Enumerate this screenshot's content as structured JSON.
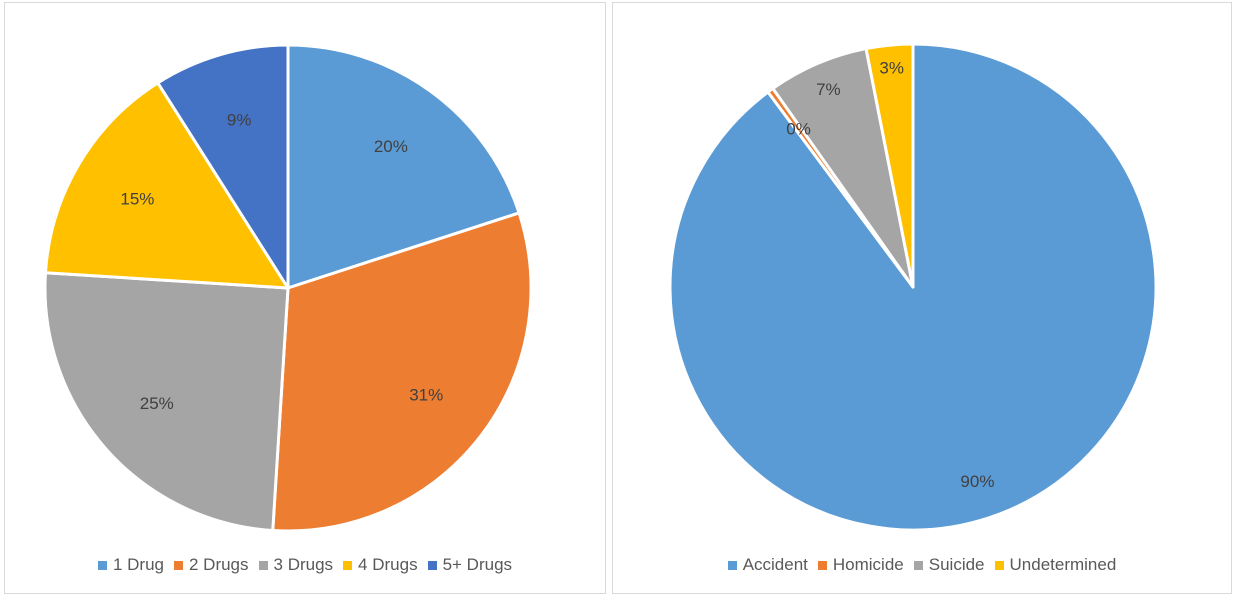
{
  "chart_data": [
    {
      "type": "pie",
      "categories": [
        "1 Drug",
        "2 Drugs",
        "3 Drugs",
        "4 Drugs",
        "5+ Drugs"
      ],
      "values": [
        20,
        31,
        25,
        15,
        9
      ],
      "labels": [
        "20%",
        "31%",
        "25%",
        "15%",
        "9%"
      ],
      "colors": [
        "#5b9bd5",
        "#ed7d31",
        "#a5a5a5",
        "#ffc000",
        "#4472c4"
      ],
      "start": "12 o'clock",
      "direction": "clockwise",
      "legend_position": "bottom"
    },
    {
      "type": "pie",
      "categories": [
        "Accident",
        "Homicide",
        "Suicide",
        "Undetermined"
      ],
      "values": [
        90,
        0.4,
        6.7,
        3.1
      ],
      "labels": [
        "90%",
        "0%",
        "7%",
        "3%"
      ],
      "colors": [
        "#5b9bd5",
        "#ed7d31",
        "#a5a5a5",
        "#ffc000"
      ],
      "start": "12 o'clock",
      "direction": "clockwise",
      "legend_position": "bottom"
    }
  ]
}
